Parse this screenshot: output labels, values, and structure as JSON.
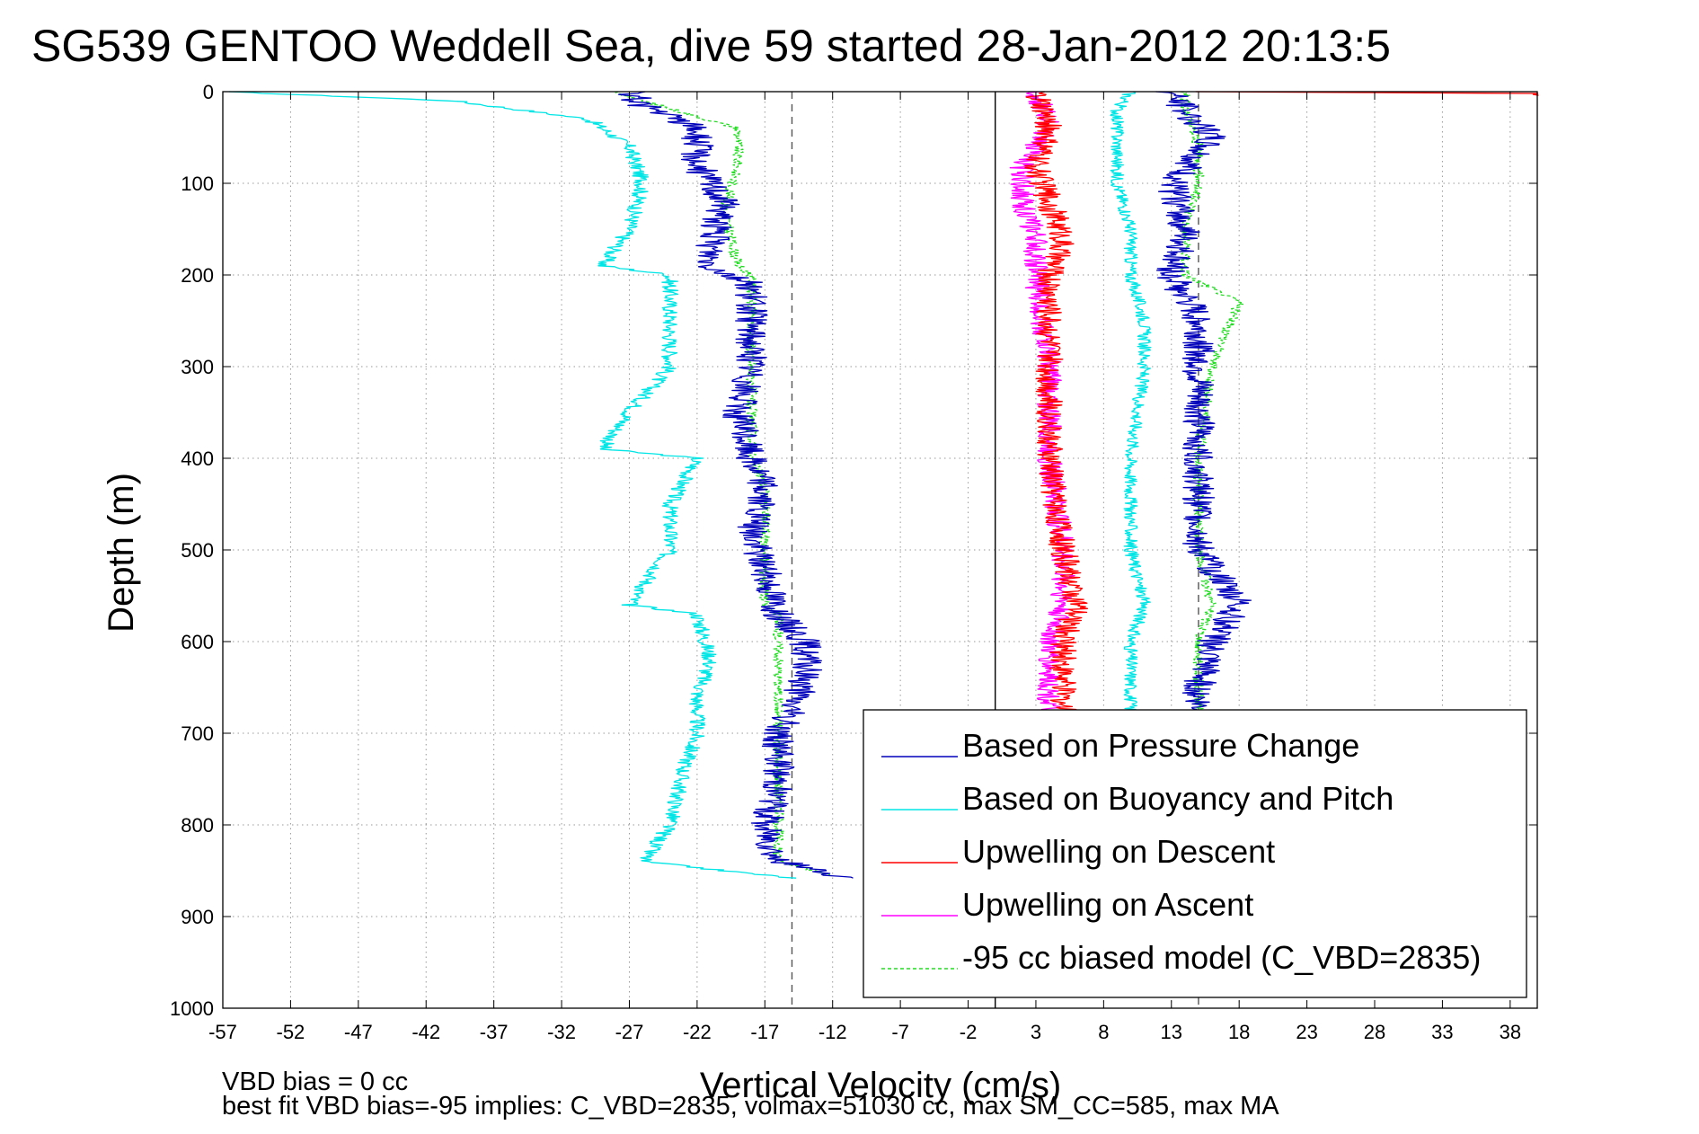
{
  "chart_data": {
    "type": "line",
    "title": "SG539 GENTOO Weddell Sea, dive 59 started 28-Jan-2012 20:13:5",
    "xlabel": "Vertical Velocity (cm/s)",
    "ylabel": "Depth (m)",
    "xlim": [
      -57,
      40
    ],
    "ylim": [
      0,
      1000
    ],
    "y_reversed": true,
    "grid": true,
    "xticks": [
      -57,
      -52,
      -47,
      -42,
      -37,
      -32,
      -27,
      -22,
      -17,
      -12,
      -7,
      -2,
      3,
      8,
      13,
      18,
      23,
      28,
      33,
      38
    ],
    "yticks": [
      0,
      100,
      200,
      300,
      400,
      500,
      600,
      700,
      800,
      900,
      1000
    ],
    "legend_position": "bottom-right",
    "reference_lines": [
      {
        "x": 0,
        "style": "solid",
        "color": "#000000"
      },
      {
        "x": -15,
        "style": "dashed",
        "color": "#555555"
      },
      {
        "x": 15,
        "style": "dashed",
        "color": "#555555"
      }
    ],
    "footnotes": [
      "VBD bias = 0 cc",
      "best fit VBD bias=-95 implies: C_VBD=2835, volmax=51030 cc, max SM_CC=585, max MA"
    ],
    "series": [
      {
        "name": "Based on Pressure Change",
        "color": "#0000bb",
        "noise": 1.2,
        "depth": [
          0,
          15,
          40,
          80,
          120,
          170,
          190,
          210,
          250,
          300,
          350,
          400,
          430,
          480,
          520,
          570,
          600,
          640,
          700,
          760,
          800,
          840,
          850,
          858
        ],
        "velocity": [
          -27,
          -26,
          -22,
          -22,
          -20,
          -21,
          -21,
          -18,
          -18,
          -18,
          -19,
          -18,
          -17,
          -18,
          -17,
          -16,
          -14,
          -14,
          -16,
          -16,
          -17,
          -16,
          -13,
          -11
        ]
      },
      {
        "name": "Based on Buoyancy and Pitch",
        "color": "#00e5e5",
        "noise": 0.6,
        "depth": [
          0,
          10,
          30,
          60,
          100,
          150,
          190,
          200,
          260,
          300,
          350,
          390,
          400,
          450,
          500,
          560,
          570,
          620,
          660,
          700,
          740,
          800,
          840,
          850,
          858
        ],
        "velocity": [
          -57,
          -40,
          -30,
          -27,
          -26,
          -27,
          -29,
          -24,
          -24,
          -24,
          -27,
          -29,
          -22,
          -24,
          -24,
          -27,
          -22,
          -21,
          -22,
          -22,
          -23,
          -24,
          -26,
          -20,
          -15
        ]
      },
      {
        "name": "Upwelling on Descent",
        "color": "#ff0000",
        "noise": 1.0,
        "depth": [
          0,
          40,
          80,
          120,
          160,
          200,
          300,
          400,
          500,
          560,
          600,
          650,
          680
        ],
        "velocity": [
          3,
          4,
          3,
          4,
          5,
          4,
          4,
          4,
          5,
          6,
          5,
          5,
          5
        ]
      },
      {
        "name": "Upwelling on Ascent",
        "color": "#ff00ff",
        "noise": 0.9,
        "depth": [
          0,
          40,
          80,
          120,
          160,
          200,
          300,
          400,
          500,
          560,
          600,
          650,
          680
        ],
        "velocity": [
          3,
          4,
          2,
          2,
          3,
          3,
          4,
          4,
          5,
          5,
          4,
          4,
          4
        ]
      },
      {
        "name": "-95 cc biased model (C_VBD=2835)",
        "color": "#22dd22",
        "dashed": true,
        "noise": 0.4,
        "depth": [
          0,
          10,
          40,
          80,
          130,
          190,
          200,
          260,
          300,
          360,
          400,
          430,
          500,
          560,
          570,
          620,
          680,
          720,
          760,
          800,
          840,
          855
        ],
        "velocity": [
          -28,
          -26,
          -19,
          -19,
          -20,
          -19,
          -18,
          -18,
          -18,
          -18,
          -18,
          -17,
          -17,
          -17,
          -16,
          -16,
          -16,
          -16,
          -16,
          -16,
          -16,
          -12
        ]
      },
      {
        "name": "",
        "color": "#22dd22",
        "dashed": true,
        "noise": 0.4,
        "depth": [
          0,
          20,
          60,
          100,
          150,
          200,
          230,
          300,
          400,
          500,
          560,
          600,
          650,
          675
        ],
        "velocity": [
          14,
          14,
          15,
          15,
          14,
          14,
          18,
          16,
          15,
          15,
          16,
          15,
          15,
          15
        ]
      },
      {
        "name": "",
        "color": "#00e5e5",
        "noise": 0.5,
        "depth": [
          0,
          20,
          60,
          100,
          150,
          200,
          250,
          300,
          400,
          500,
          560,
          600,
          650,
          675
        ],
        "velocity": [
          10,
          9,
          9,
          9,
          10,
          10,
          11,
          11,
          10,
          10,
          11,
          10,
          10,
          10
        ]
      },
      {
        "name": "",
        "color": "#0000bb",
        "noise": 1.2,
        "depth": [
          0,
          20,
          50,
          100,
          150,
          200,
          250,
          300,
          400,
          500,
          560,
          600,
          650,
          675
        ],
        "velocity": [
          13,
          14,
          16,
          13,
          14,
          13,
          15,
          15,
          15,
          15,
          18,
          16,
          15,
          15
        ]
      },
      {
        "name": "",
        "color": "#ff0000",
        "noise": 0.3,
        "depth": [
          0,
          2,
          4
        ],
        "velocity": [
          15,
          40,
          40
        ]
      }
    ]
  }
}
